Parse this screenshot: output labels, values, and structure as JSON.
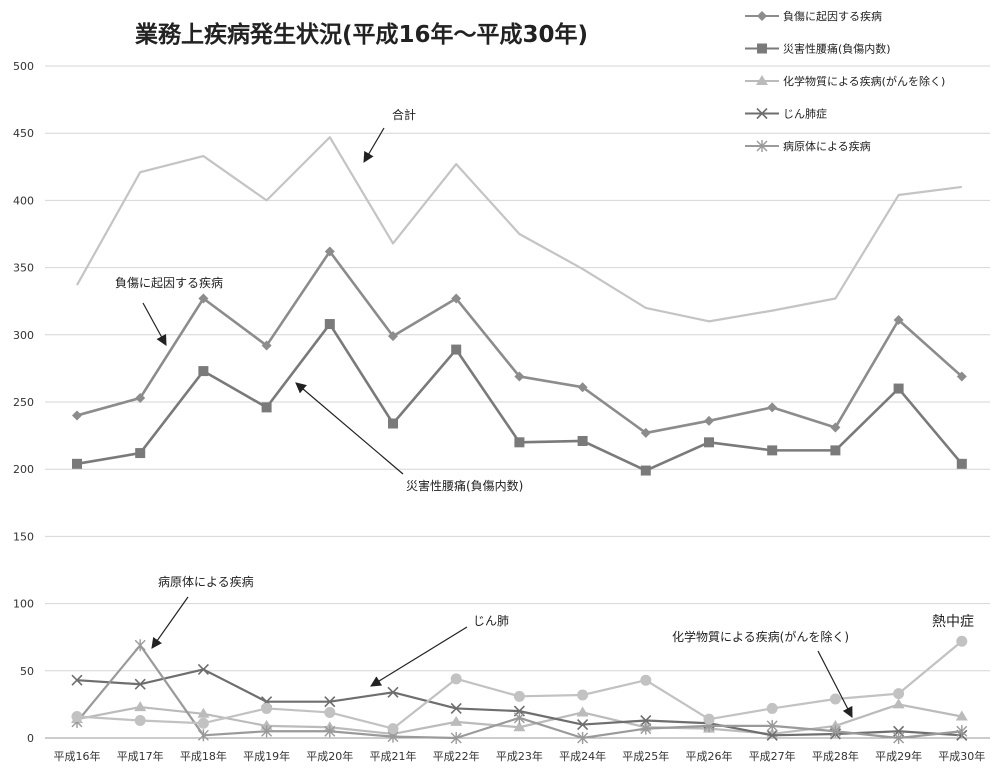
{
  "chart_data": {
    "type": "line",
    "title": "業務上疾病発生状況(平成16年～平成30年)",
    "categories": [
      "平成16年",
      "平成17年",
      "平成18年",
      "平成19年",
      "平成20年",
      "平成21年",
      "平成22年",
      "平成23年",
      "平成24年",
      "平成25年",
      "平成26年",
      "平成27年",
      "平成28年",
      "平成29年",
      "平成30年"
    ],
    "ylim": [
      0,
      500
    ],
    "yticks": [
      0,
      50,
      100,
      150,
      200,
      250,
      300,
      350,
      400,
      450,
      500
    ],
    "grid": true,
    "legend_position": "top-right",
    "series": [
      {
        "name": "負傷に起因する疾病",
        "color": "#8c8c8c",
        "marker": "diamond",
        "values": [
          240,
          253,
          327,
          292,
          362,
          299,
          327,
          269,
          261,
          227,
          236,
          246,
          231,
          311,
          269
        ]
      },
      {
        "name": "災害性腰痛(負傷内数)",
        "color": "#7a7a7a",
        "marker": "square",
        "values": [
          204,
          212,
          273,
          246,
          308,
          234,
          289,
          220,
          221,
          199,
          220,
          214,
          214,
          260,
          204
        ]
      },
      {
        "name": "化学物質による疾病(がんを除く)",
        "color": "#bbbbbb",
        "marker": "triangle",
        "values": [
          14,
          23,
          18,
          9,
          8,
          3,
          12,
          8,
          19,
          8,
          7,
          3,
          9,
          25,
          16
        ]
      },
      {
        "name": "じん肺症",
        "color": "#6e6e6e",
        "marker": "x",
        "values": [
          43,
          40,
          51,
          27,
          27,
          34,
          22,
          20,
          10,
          13,
          11,
          2,
          3,
          5,
          2
        ]
      },
      {
        "name": "病原体による疾病",
        "color": "#9a9a9a",
        "marker": "star",
        "values": [
          12,
          69,
          2,
          5,
          5,
          1,
          0,
          15,
          0,
          7,
          9,
          9,
          5,
          0,
          5
        ]
      },
      {
        "name": "合計",
        "color": "#c4c4c4",
        "marker": "none",
        "values": [
          337,
          421,
          433,
          400,
          447,
          368,
          427,
          375,
          349,
          320,
          310,
          318,
          327,
          404,
          410
        ]
      },
      {
        "name": "熱中症",
        "color": "#c2c2c2",
        "marker": "circle",
        "values": [
          16,
          13,
          11,
          22,
          19,
          7,
          44,
          31,
          32,
          43,
          14,
          22,
          29,
          33,
          72
        ]
      }
    ],
    "annotations": [
      {
        "text": "合計",
        "size": "normal"
      },
      {
        "text": "負傷に起因する疾病",
        "size": "normal"
      },
      {
        "text": "災害性腰痛(負傷内数)",
        "size": "normal"
      },
      {
        "text": "病原体による疾病",
        "size": "normal"
      },
      {
        "text": "じん肺",
        "size": "normal"
      },
      {
        "text": "化学物質による疾病(がんを除く)",
        "size": "normal"
      },
      {
        "text": "熱中症",
        "size": "big"
      }
    ]
  }
}
